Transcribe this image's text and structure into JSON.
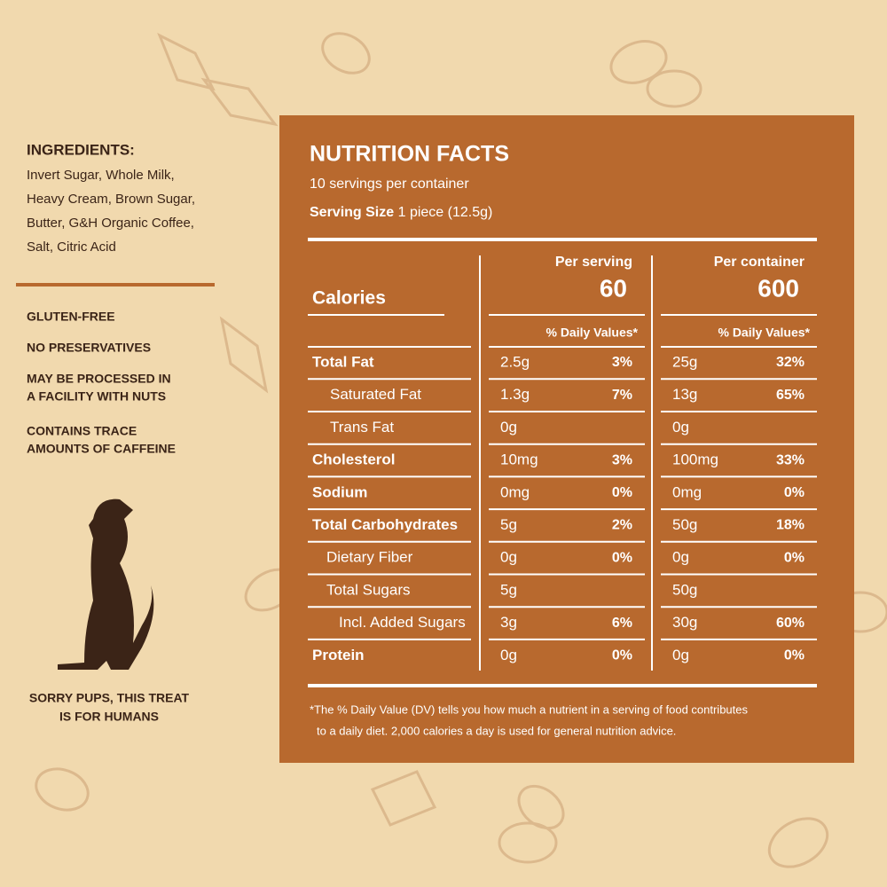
{
  "ingredients": {
    "title": "INGREDIENTS:",
    "lines": [
      "Invert Sugar, Whole Milk,",
      "Heavy Cream, Brown Sugar,",
      "Butter, G&H Organic Coffee,",
      "Salt, Citric Acid"
    ]
  },
  "notes": [
    [
      "GLUTEN-FREE"
    ],
    [
      "NO PRESERVATIVES"
    ],
    [
      "MAY BE PROCESSED IN",
      "A FACILITY WITH NUTS"
    ],
    [
      "CONTAINS TRACE",
      "AMOUNTS OF CAFFEINE"
    ]
  ],
  "dog_caption": [
    "SORRY PUPS, THIS TREAT",
    "IS FOR HUMANS"
  ],
  "nutrition": {
    "title": "NUTRITION FACTS",
    "servings": "10 servings per container",
    "serving_size_label": "Serving Size",
    "serving_size": "1 piece (12.5g)",
    "calories_label": "Calories",
    "columns": [
      {
        "header": "Per serving",
        "calories": 60,
        "dv_header": "% Daily Values*"
      },
      {
        "header": "Per container",
        "calories": 600,
        "dv_header": "% Daily Values*"
      }
    ],
    "rows": [
      {
        "name": "Total Fat",
        "bold": true,
        "indent": 0,
        "values": [
          [
            "2.5g",
            "3%"
          ],
          [
            "25g",
            "32%"
          ]
        ]
      },
      {
        "name": "Saturated Fat",
        "bold": false,
        "indent": 1,
        "values": [
          [
            "1.3g",
            "7%"
          ],
          [
            "13g",
            "65%"
          ]
        ]
      },
      {
        "name": "Trans Fat",
        "bold": false,
        "indent": 1,
        "values": [
          [
            "0g",
            null
          ],
          [
            "0g",
            null
          ]
        ]
      },
      {
        "name": "Cholesterol",
        "bold": true,
        "indent": 0,
        "values": [
          [
            "10mg",
            "3%"
          ],
          [
            "100mg",
            "33%"
          ]
        ]
      },
      {
        "name": "Sodium",
        "bold": true,
        "indent": 0,
        "values": [
          [
            "0mg",
            "0%"
          ],
          [
            "0mg",
            "0%"
          ]
        ]
      },
      {
        "name": "Total Carbohydrates",
        "bold": true,
        "indent": 0,
        "values": [
          [
            "5g",
            "2%"
          ],
          [
            "50g",
            "18%"
          ]
        ]
      },
      {
        "name": "Dietary Fiber",
        "bold": false,
        "indent": 1,
        "values": [
          [
            "0g",
            "0%"
          ],
          [
            "0g",
            "0%"
          ]
        ]
      },
      {
        "name": "Total Sugars",
        "bold": false,
        "indent": 1,
        "values": [
          [
            "5g",
            null
          ],
          [
            "50g",
            null
          ]
        ]
      },
      {
        "name": "Incl. Added Sugars",
        "bold": false,
        "indent": 2,
        "values": [
          [
            "3g",
            "6%"
          ],
          [
            "30g",
            "60%"
          ]
        ]
      },
      {
        "name": "Protein",
        "bold": true,
        "indent": 0,
        "values": [
          [
            "0g",
            "0%"
          ],
          [
            "0g",
            "0%"
          ]
        ]
      }
    ],
    "footnote": [
      "*The % Daily Value (DV) tells you how much a nutrient in a serving of food contributes",
      "to a daily diet. 2,000 calories a day is used for general nutrition advice."
    ]
  }
}
